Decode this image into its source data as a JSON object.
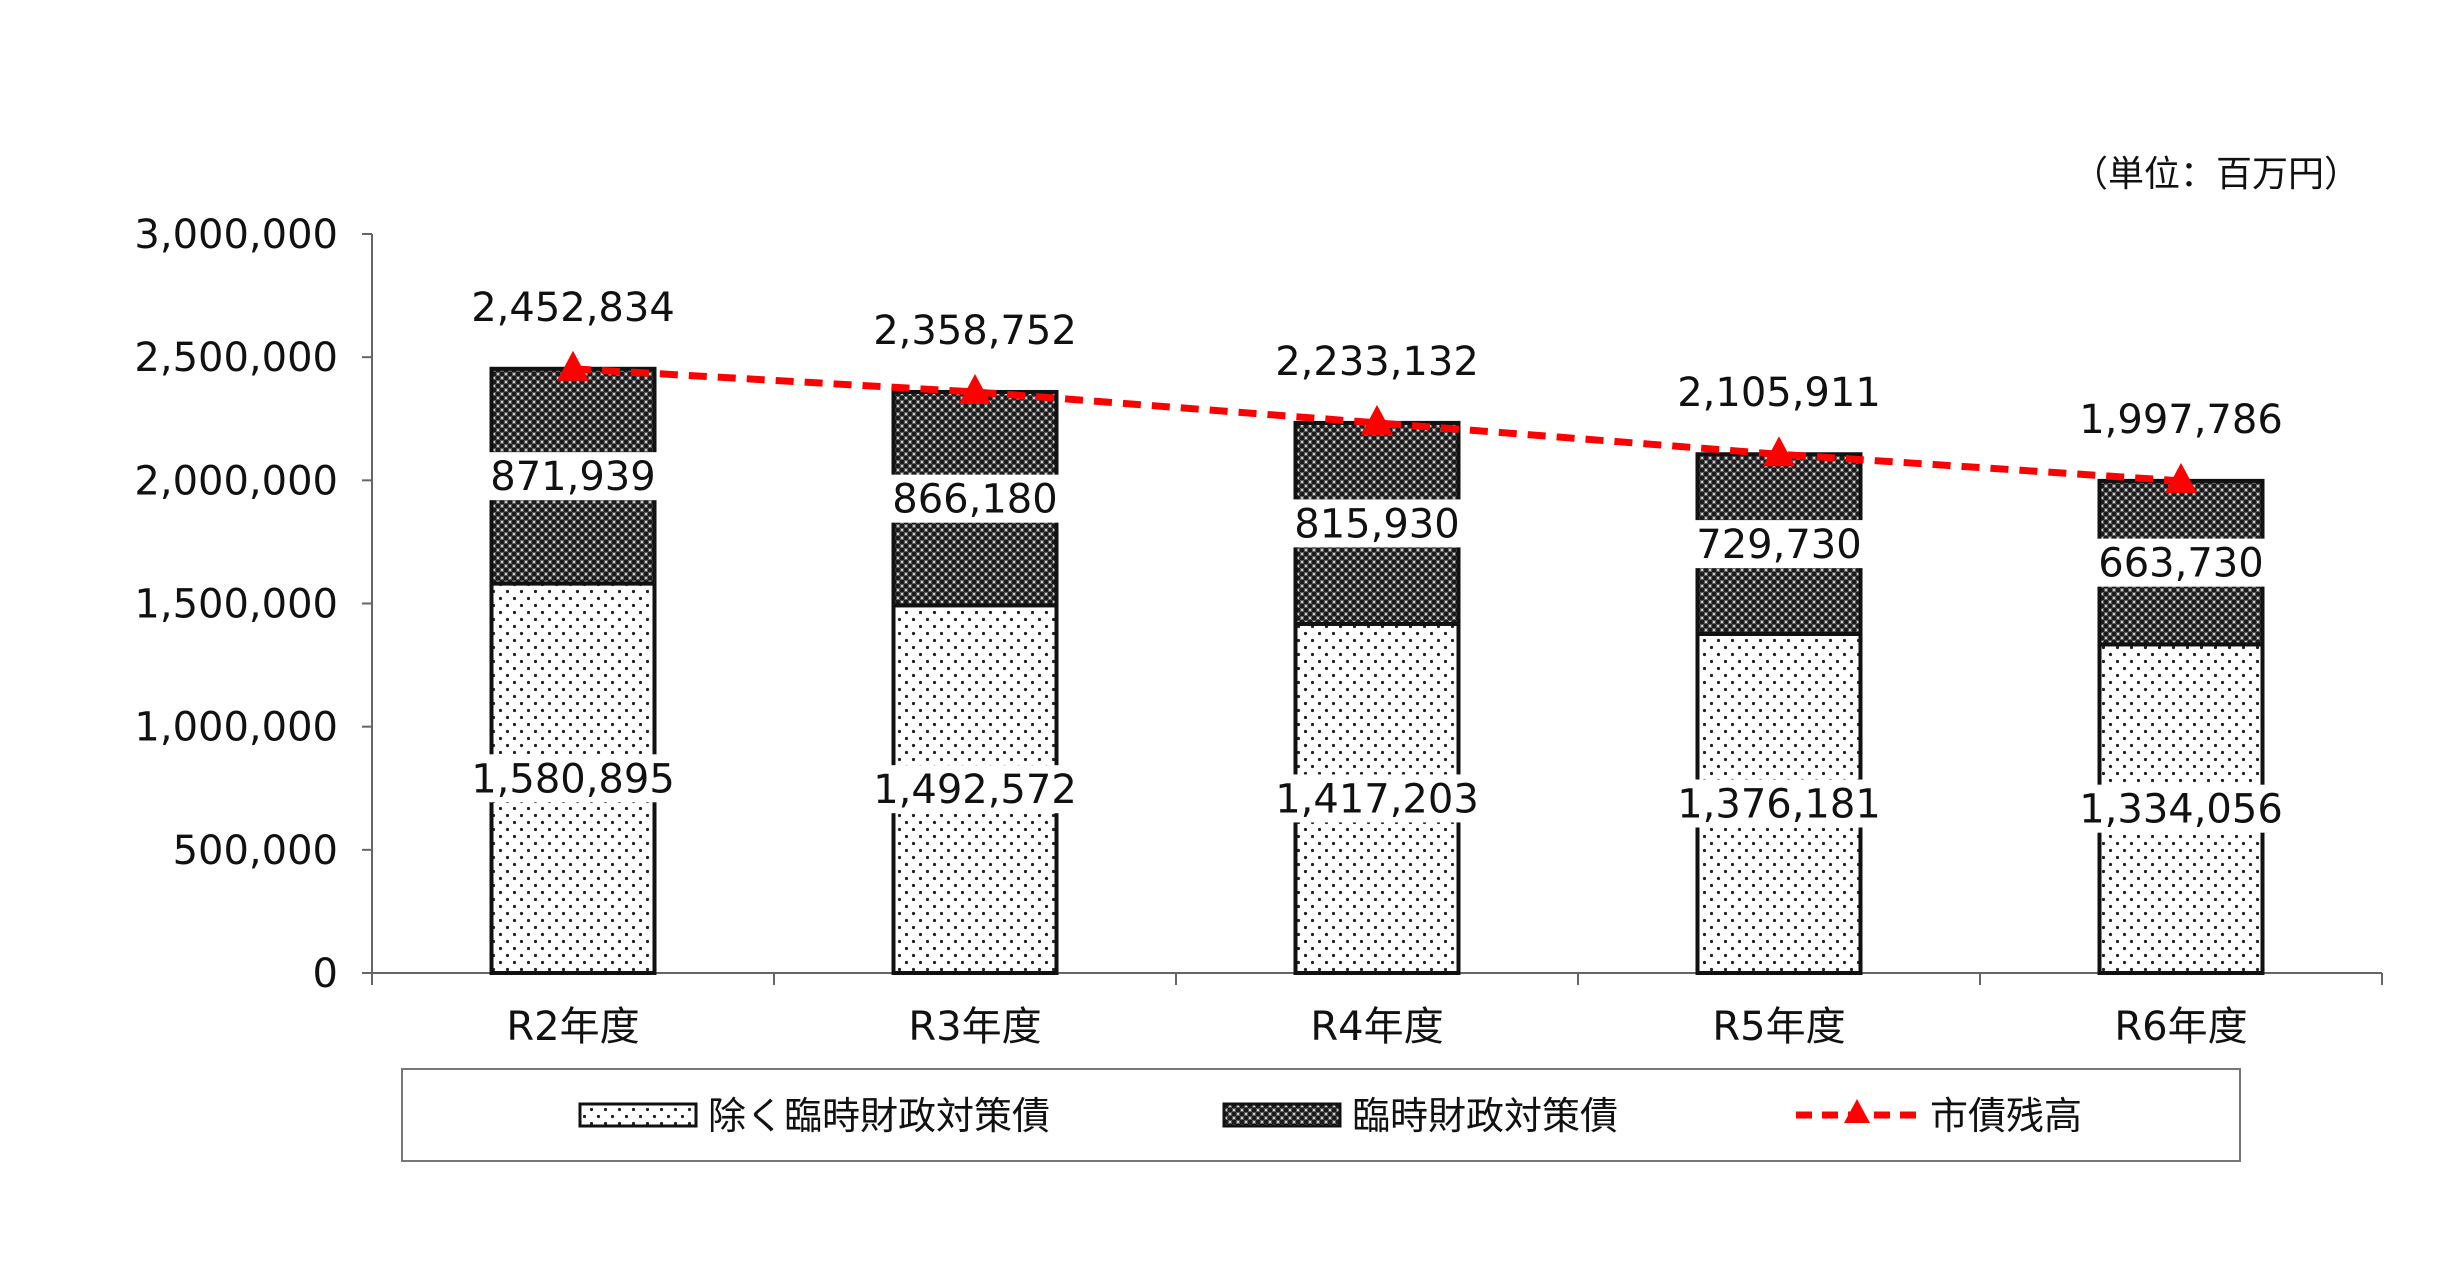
{
  "unit_label": "（単位：百万円）",
  "chart_data": {
    "type": "bar",
    "stacked": true,
    "title": "",
    "xlabel": "",
    "ylabel": "",
    "categories": [
      "R2年度",
      "R3年度",
      "R4年度",
      "R5年度",
      "R6年度"
    ],
    "ylim": [
      0,
      3000000
    ],
    "yticks": [
      0,
      500000,
      1000000,
      1500000,
      2000000,
      2500000,
      3000000
    ],
    "ytick_labels": [
      "0",
      "500,000",
      "1,000,000",
      "1,500,000",
      "2,000,000",
      "2,500,000",
      "3,000,000"
    ],
    "grid": false,
    "legend_position": "bottom",
    "series": [
      {
        "name": "除く臨時財政対策債",
        "kind": "bar",
        "pattern": "dots",
        "values": [
          1580895,
          1492572,
          1417203,
          1376181,
          1334056
        ],
        "labels": [
          "1,580,895",
          "1,492,572",
          "1,417,203",
          "1,376,181",
          "1,334,056"
        ]
      },
      {
        "name": "臨時財政対策債",
        "kind": "bar",
        "pattern": "crosshatch",
        "values": [
          871939,
          866180,
          815930,
          729730,
          663730
        ],
        "labels": [
          "871,939",
          "866,180",
          "815,930",
          "729,730",
          "663,730"
        ]
      },
      {
        "name": "市債残高",
        "kind": "line",
        "color": "#ff0000",
        "marker": "triangle",
        "dashed": true,
        "values": [
          2452834,
          2358752,
          2233132,
          2105911,
          1997786
        ],
        "labels": [
          "2,452,834",
          "2,358,752",
          "2,233,132",
          "2,105,911",
          "1,997,786"
        ]
      }
    ]
  }
}
